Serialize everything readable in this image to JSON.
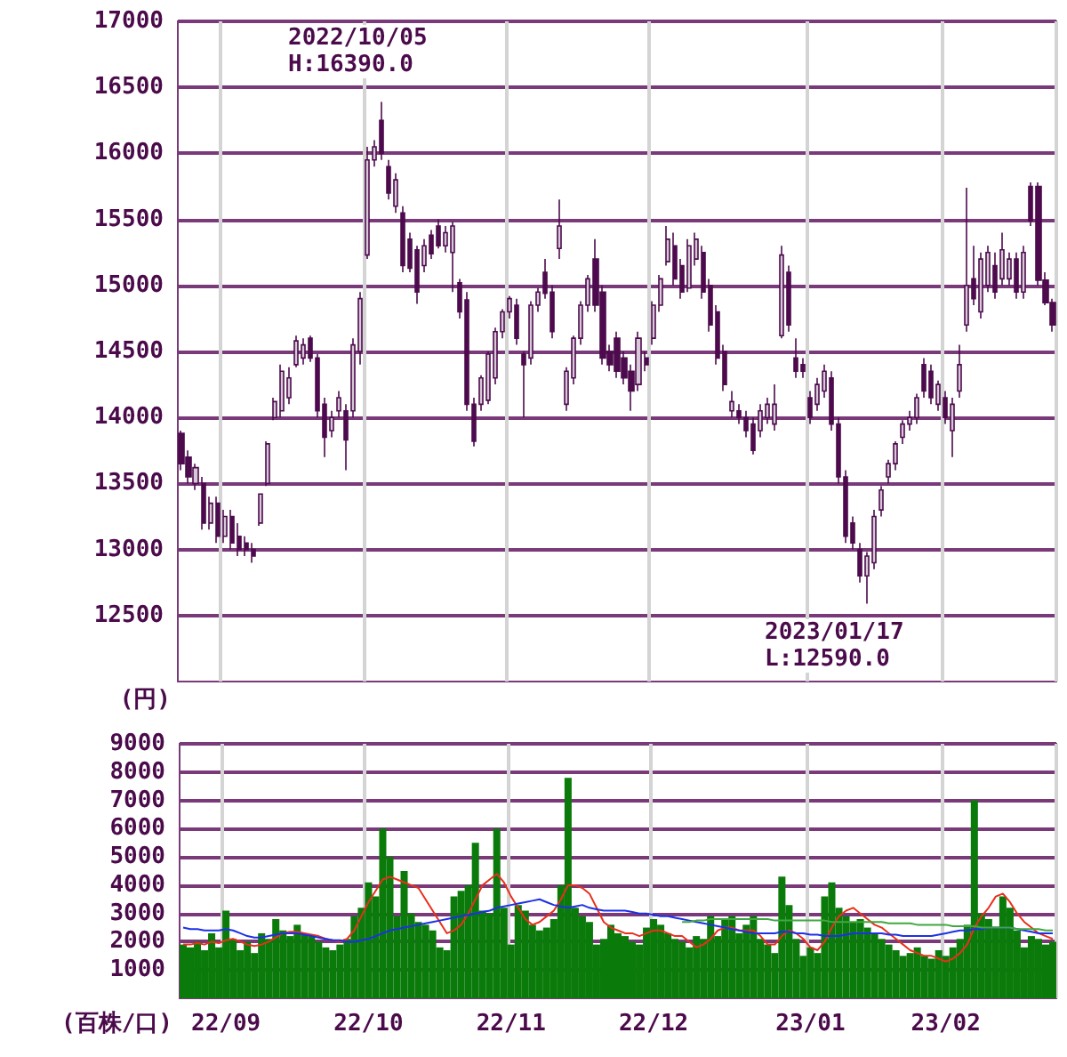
{
  "chart_data": [
    {
      "type": "candlestick",
      "ylabel": "(円)",
      "annotations": [
        "2022/10/05\nH:16390.0",
        "2023/01/17\nL:12590.0"
      ],
      "categories": [
        null,
        null,
        null,
        null,
        null,
        null,
        null,
        null,
        null,
        null,
        null,
        null,
        null,
        null,
        null,
        null,
        null,
        null,
        null,
        null,
        null,
        null,
        null,
        null,
        null,
        null,
        null,
        null,
        null,
        null,
        null,
        null,
        null,
        null,
        null,
        null,
        null,
        null,
        null,
        null,
        null,
        null,
        null,
        null,
        null,
        null,
        null,
        null,
        null,
        null,
        null,
        null,
        null,
        null,
        null,
        null,
        null,
        null,
        null,
        null,
        null,
        null,
        null,
        null,
        null,
        null,
        null,
        null,
        null,
        null,
        null,
        null,
        null,
        null,
        null,
        null,
        null,
        null,
        null,
        null,
        null,
        null,
        null,
        null,
        null,
        null,
        null,
        null,
        null,
        null,
        null,
        null,
        null,
        null,
        null,
        null,
        null,
        null,
        null,
        null,
        null,
        null,
        null,
        null,
        null,
        null,
        null,
        null,
        null,
        null,
        null,
        null,
        null,
        null,
        null,
        null,
        null,
        null,
        null,
        null,
        null,
        null,
        null
      ],
      "series": [
        {
          "color": "#4d0a4d",
          "ohlc": [
            [
              13880,
              13900,
              13600,
              13650
            ],
            [
              13700,
              13750,
              13500,
              13550
            ],
            [
              13500,
              13650,
              13450,
              13620
            ],
            [
              13500,
              13550,
              13150,
              13200
            ],
            [
              13200,
              13400,
              13150,
              13350
            ],
            [
              13350,
              13400,
              13050,
              13100
            ],
            [
              13100,
              13300,
              13050,
              13250
            ],
            [
              13250,
              13300,
              13000,
              13050
            ],
            [
              13100,
              13200,
              12950,
              13000
            ],
            [
              13050,
              13100,
              12950,
              13000
            ],
            [
              13000,
              13050,
              12900,
              12950
            ],
            [
              13200,
              13420,
              13180,
              13420
            ],
            [
              13500,
              13820,
              13480,
              13800
            ],
            [
              14000,
              14150,
              13980,
              14120
            ],
            [
              14050,
              14400,
              14000,
              14350
            ],
            [
              14150,
              14380,
              14100,
              14300
            ],
            [
              14400,
              14620,
              14380,
              14580
            ],
            [
              14450,
              14600,
              14400,
              14550
            ],
            [
              14600,
              14620,
              14420,
              14450
            ],
            [
              14450,
              14480,
              14000,
              14050
            ],
            [
              14100,
              14150,
              13700,
              13850
            ],
            [
              13900,
              14050,
              13850,
              14000
            ],
            [
              14050,
              14200,
              14000,
              14150
            ],
            [
              14050,
              14100,
              13600,
              13830
            ],
            [
              14050,
              14600,
              14000,
              14550
            ],
            [
              14500,
              14950,
              14400,
              14900
            ],
            [
              15230,
              16050,
              15200,
              15950
            ],
            [
              15950,
              16100,
              15900,
              16050
            ],
            [
              16250,
              16390,
              15950,
              16000
            ],
            [
              15900,
              15950,
              15650,
              15700
            ],
            [
              15600,
              15850,
              15550,
              15800
            ],
            [
              15550,
              15600,
              15100,
              15150
            ],
            [
              15350,
              15400,
              15100,
              15130
            ],
            [
              15270,
              15300,
              14860,
              14950
            ],
            [
              15150,
              15350,
              15100,
              15300
            ],
            [
              15380,
              15420,
              15200,
              15240
            ],
            [
              15450,
              15500,
              15280,
              15300
            ],
            [
              15300,
              15450,
              15250,
              15400
            ],
            [
              15250,
              15480,
              14950,
              15450
            ],
            [
              15020,
              15050,
              14750,
              14800
            ],
            [
              14890,
              14950,
              14050,
              14100
            ],
            [
              14100,
              14150,
              13780,
              13820
            ],
            [
              14100,
              14320,
              14050,
              14300
            ],
            [
              14130,
              14500,
              14100,
              14480
            ],
            [
              14300,
              14680,
              14250,
              14650
            ],
            [
              14650,
              14820,
              14600,
              14800
            ],
            [
              14800,
              14920,
              14750,
              14900
            ],
            [
              14850,
              14900,
              14550,
              14600
            ],
            [
              14480,
              14500,
              14000,
              14400
            ],
            [
              14450,
              14880,
              14400,
              14850
            ],
            [
              14850,
              14980,
              14800,
              14950
            ],
            [
              15100,
              15200,
              14900,
              14940
            ],
            [
              14950,
              15000,
              14600,
              14650
            ],
            [
              15280,
              15650,
              15200,
              15450
            ],
            [
              14100,
              14380,
              14050,
              14350
            ],
            [
              14300,
              14620,
              14250,
              14600
            ],
            [
              14600,
              14880,
              14550,
              14850
            ],
            [
              14850,
              15080,
              14800,
              15050
            ],
            [
              15200,
              15350,
              14800,
              14850
            ],
            [
              14950,
              15000,
              14400,
              14450
            ],
            [
              14500,
              14550,
              14350,
              14400
            ],
            [
              14600,
              14650,
              14300,
              14350
            ],
            [
              14450,
              14500,
              14250,
              14300
            ],
            [
              14350,
              14400,
              14050,
              14200
            ],
            [
              14250,
              14650,
              14200,
              14600
            ],
            [
              14450,
              14500,
              14350,
              14400
            ],
            [
              14600,
              14880,
              14550,
              14850
            ],
            [
              14850,
              15080,
              14800,
              15050
            ],
            [
              15180,
              15450,
              15150,
              15350
            ],
            [
              15300,
              15400,
              15000,
              15050
            ],
            [
              15150,
              15200,
              14900,
              14950
            ],
            [
              14980,
              15350,
              14950,
              15300
            ],
            [
              15200,
              15400,
              15150,
              15350
            ],
            [
              15250,
              15300,
              14900,
              14950
            ],
            [
              15000,
              15050,
              14650,
              14700
            ],
            [
              14800,
              14850,
              14400,
              14450
            ],
            [
              14500,
              14550,
              14200,
              14250
            ],
            [
              14050,
              14200,
              14000,
              14120
            ],
            [
              14050,
              14100,
              13950,
              14000
            ],
            [
              14000,
              14050,
              13850,
              13900
            ],
            [
              13950,
              14000,
              13720,
              13750
            ],
            [
              13900,
              14100,
              13850,
              14050
            ],
            [
              14000,
              14150,
              13950,
              14100
            ],
            [
              13950,
              14250,
              13900,
              14100
            ],
            [
              14620,
              15300,
              14600,
              15230
            ],
            [
              15100,
              15150,
              14650,
              14700
            ],
            [
              14450,
              14600,
              14300,
              14350
            ],
            [
              14400,
              14450,
              14300,
              14350
            ],
            [
              14150,
              14200,
              13950,
              14000
            ],
            [
              14100,
              14300,
              14050,
              14250
            ],
            [
              14200,
              14400,
              14150,
              14350
            ],
            [
              14300,
              14350,
              13900,
              13950
            ],
            [
              13950,
              14000,
              13500,
              13550
            ],
            [
              13550,
              13600,
              13050,
              13100
            ],
            [
              13200,
              13250,
              13000,
              13050
            ],
            [
              13000,
              13050,
              12750,
              12800
            ],
            [
              12800,
              12980,
              12590,
              12950
            ],
            [
              12900,
              13300,
              12850,
              13250
            ],
            [
              13300,
              13480,
              13250,
              13450
            ],
            [
              13550,
              13680,
              13500,
              13650
            ],
            [
              13650,
              13820,
              13600,
              13800
            ],
            [
              13850,
              13980,
              13800,
              13950
            ],
            [
              13950,
              14050,
              13900,
              14000
            ],
            [
              14000,
              14180,
              13950,
              14150
            ],
            [
              14400,
              14450,
              14150,
              14200
            ],
            [
              14350,
              14400,
              14100,
              14150
            ],
            [
              14100,
              14280,
              14050,
              14250
            ],
            [
              14150,
              14200,
              13950,
              14000
            ],
            [
              13900,
              14150,
              13700,
              14100
            ],
            [
              14200,
              14550,
              14150,
              14400
            ],
            [
              14700,
              15740,
              14650,
              15000
            ],
            [
              15050,
              15300,
              14850,
              14900
            ],
            [
              14800,
              15250,
              14750,
              15200
            ],
            [
              15000,
              15300,
              14950,
              15250
            ],
            [
              15150,
              15250,
              14900,
              14950
            ],
            [
              15050,
              15400,
              15000,
              15270
            ],
            [
              15050,
              15250,
              15000,
              15200
            ],
            [
              15200,
              15250,
              14900,
              14950
            ],
            [
              14950,
              15300,
              14900,
              15250
            ],
            [
              15750,
              15780,
              15450,
              15490
            ],
            [
              15750,
              15780,
              15000,
              15040
            ],
            [
              15040,
              15100,
              14850,
              14870
            ],
            [
              14870,
              14900,
              14650,
              14700
            ]
          ]
        }
      ],
      "ylim": [
        12000,
        17000
      ],
      "yticks": [
        12500,
        13000,
        13500,
        14000,
        14500,
        15000,
        15500,
        16000,
        16500,
        17000
      ],
      "grid": true,
      "tick_labels": "y"
    },
    {
      "type": "bar",
      "ylabel": "(百株/口)",
      "categories": [
        null,
        null,
        null,
        null,
        null,
        null,
        "22/09",
        null,
        null,
        null,
        null,
        null,
        null,
        null,
        null,
        null,
        null,
        null,
        null,
        null,
        null,
        null,
        null,
        null,
        null,
        null,
        "22/10",
        null,
        null,
        null,
        null,
        null,
        null,
        null,
        null,
        null,
        null,
        null,
        null,
        null,
        null,
        null,
        null,
        null,
        null,
        null,
        "22/11",
        null,
        null,
        null,
        null,
        null,
        null,
        null,
        null,
        null,
        null,
        null,
        null,
        null,
        null,
        null,
        null,
        null,
        null,
        null,
        "22/12",
        null,
        null,
        null,
        null,
        null,
        null,
        null,
        null,
        null,
        null,
        null,
        null,
        null,
        null,
        null,
        null,
        null,
        null,
        null,
        null,
        null,
        "23/01",
        null,
        null,
        null,
        null,
        null,
        null,
        null,
        null,
        null,
        null,
        null,
        null,
        null,
        null,
        null,
        null,
        null,
        null,
        "23/02",
        null,
        null,
        null,
        null,
        null,
        null,
        null,
        null,
        null,
        null,
        null,
        null,
        null,
        null,
        null
      ],
      "series": [
        {
          "type": "bar",
          "color": "#0a7a0a",
          "values": [
            1900,
            1800,
            2000,
            1700,
            2300,
            1800,
            3100,
            2100,
            1700,
            2000,
            1600,
            2300,
            2100,
            2800,
            2400,
            2200,
            2600,
            2300,
            2200,
            2000,
            1800,
            1700,
            1900,
            2100,
            2900,
            3200,
            4100,
            3600,
            6000,
            5000,
            2900,
            4500,
            3000,
            2700,
            2600,
            2400,
            1800,
            1700,
            3600,
            3800,
            4000,
            5500,
            3100,
            3000,
            6000,
            3200,
            1900,
            3300,
            3100,
            2600,
            2400,
            2500,
            2800,
            4000,
            7800,
            3200,
            2900,
            2700,
            1900,
            2100,
            2600,
            2300,
            2200,
            2000,
            1900,
            2500,
            2800,
            2600,
            2300,
            2100,
            2000,
            1800,
            2200,
            2100,
            2900,
            2200,
            2800,
            2900,
            2300,
            2600,
            2900,
            2100,
            1900,
            1600,
            4300,
            3300,
            2100,
            1500,
            1800,
            1600,
            3600,
            4100,
            3200,
            2900,
            2700,
            2800,
            2500,
            2300,
            2100,
            1900,
            1700,
            1500,
            1600,
            1800,
            1500,
            1400,
            1700,
            1500,
            1800,
            2100,
            2600,
            7000,
            3000,
            2800,
            2500,
            3600,
            3200,
            2400,
            1800,
            2200,
            2100,
            1900,
            2000
          ]
        },
        {
          "type": "line",
          "color": "#e8301c",
          "values": [
            1900,
            1900,
            1950,
            1900,
            2000,
            1950,
            2050,
            2100,
            2000,
            1900,
            1850,
            1900,
            2000,
            2150,
            2300,
            2350,
            2350,
            2300,
            2250,
            2200,
            2100,
            2050,
            2000,
            2100,
            2400,
            2900,
            3400,
            3800,
            4200,
            4300,
            4200,
            4100,
            4000,
            3900,
            3500,
            3100,
            2700,
            2300,
            2400,
            2600,
            3000,
            3500,
            4000,
            4200,
            4400,
            4100,
            3600,
            3200,
            2800,
            2600,
            2700,
            2900,
            3100,
            3500,
            4000,
            4000,
            3900,
            3700,
            3200,
            2700,
            2500,
            2400,
            2300,
            2300,
            2200,
            2300,
            2400,
            2400,
            2300,
            2200,
            2200,
            2000,
            1800,
            1900,
            2100,
            2400,
            2500,
            2500,
            2400,
            2400,
            2400,
            2200,
            1900,
            1900,
            2200,
            2400,
            2300,
            2100,
            1800,
            1700,
            2000,
            2500,
            2900,
            3100,
            3200,
            3000,
            2800,
            2600,
            2500,
            2300,
            2100,
            1900,
            1700,
            1600,
            1500,
            1500,
            1400,
            1300,
            1400,
            1600,
            1900,
            2500,
            2900,
            3200,
            3600,
            3700,
            3400,
            3000,
            2700,
            2500,
            2300,
            2200,
            2100
          ]
        },
        {
          "type": "line",
          "color": "#1c30e8",
          "values": [
            2500,
            2450,
            2450,
            2400,
            2400,
            2400,
            2450,
            2400,
            2300,
            2200,
            2150,
            2150,
            2200,
            2250,
            2300,
            2300,
            2300,
            2250,
            2200,
            2150,
            2100,
            2050,
            2050,
            2000,
            2000,
            2050,
            2100,
            2200,
            2300,
            2400,
            2450,
            2500,
            2550,
            2600,
            2650,
            2700,
            2750,
            2800,
            2850,
            2900,
            2950,
            3000,
            3050,
            3100,
            3200,
            3250,
            3300,
            3350,
            3400,
            3450,
            3500,
            3400,
            3300,
            3250,
            3200,
            3250,
            3300,
            3200,
            3150,
            3100,
            3100,
            3100,
            3100,
            3050,
            3000,
            3000,
            2950,
            2900,
            2900,
            2850,
            2800,
            2750,
            2700,
            2650,
            2600,
            2550,
            2500,
            2450,
            2400,
            2350,
            2300,
            2300,
            2300,
            2300,
            2350,
            2350,
            2300,
            2300,
            2250,
            2250,
            2200,
            2200,
            2200,
            2250,
            2300,
            2300,
            2300,
            2300,
            2300,
            2250,
            2250,
            2200,
            2200,
            2200,
            2200,
            2200,
            2250,
            2300,
            2350,
            2400,
            2400,
            2450,
            2450,
            2500,
            2500,
            2500,
            2500,
            2450,
            2400,
            2350,
            2300,
            2300,
            2300
          ]
        },
        {
          "type": "line",
          "color": "#40a840",
          "values": [
            null,
            null,
            null,
            null,
            null,
            null,
            null,
            null,
            null,
            null,
            null,
            null,
            null,
            null,
            null,
            null,
            null,
            null,
            null,
            null,
            null,
            null,
            null,
            null,
            null,
            null,
            null,
            null,
            null,
            null,
            null,
            null,
            null,
            null,
            null,
            null,
            null,
            null,
            null,
            null,
            null,
            null,
            null,
            null,
            null,
            null,
            null,
            null,
            null,
            null,
            null,
            null,
            null,
            null,
            null,
            null,
            null,
            null,
            null,
            null,
            null,
            null,
            null,
            null,
            null,
            null,
            null,
            null,
            null,
            null,
            2700,
            2700,
            2750,
            2750,
            2800,
            2800,
            2800,
            2800,
            2800,
            2800,
            2800,
            2800,
            2800,
            2750,
            2750,
            2750,
            2750,
            2750,
            2750,
            2750,
            2750,
            2700,
            2700,
            2700,
            2700,
            2700,
            2700,
            2700,
            2700,
            2650,
            2650,
            2650,
            2650,
            2600,
            2600,
            2600,
            2600,
            2600,
            2550,
            2550,
            2550,
            2550,
            2500,
            2500,
            2500,
            2500,
            2500,
            2450,
            2450,
            2450,
            2450,
            2400,
            2400
          ]
        }
      ],
      "ylim": [
        0,
        9000
      ],
      "yticks": [
        1000,
        2000,
        3000,
        4000,
        5000,
        6000,
        7000,
        8000,
        9000
      ],
      "grid": true,
      "marker": "none"
    }
  ]
}
